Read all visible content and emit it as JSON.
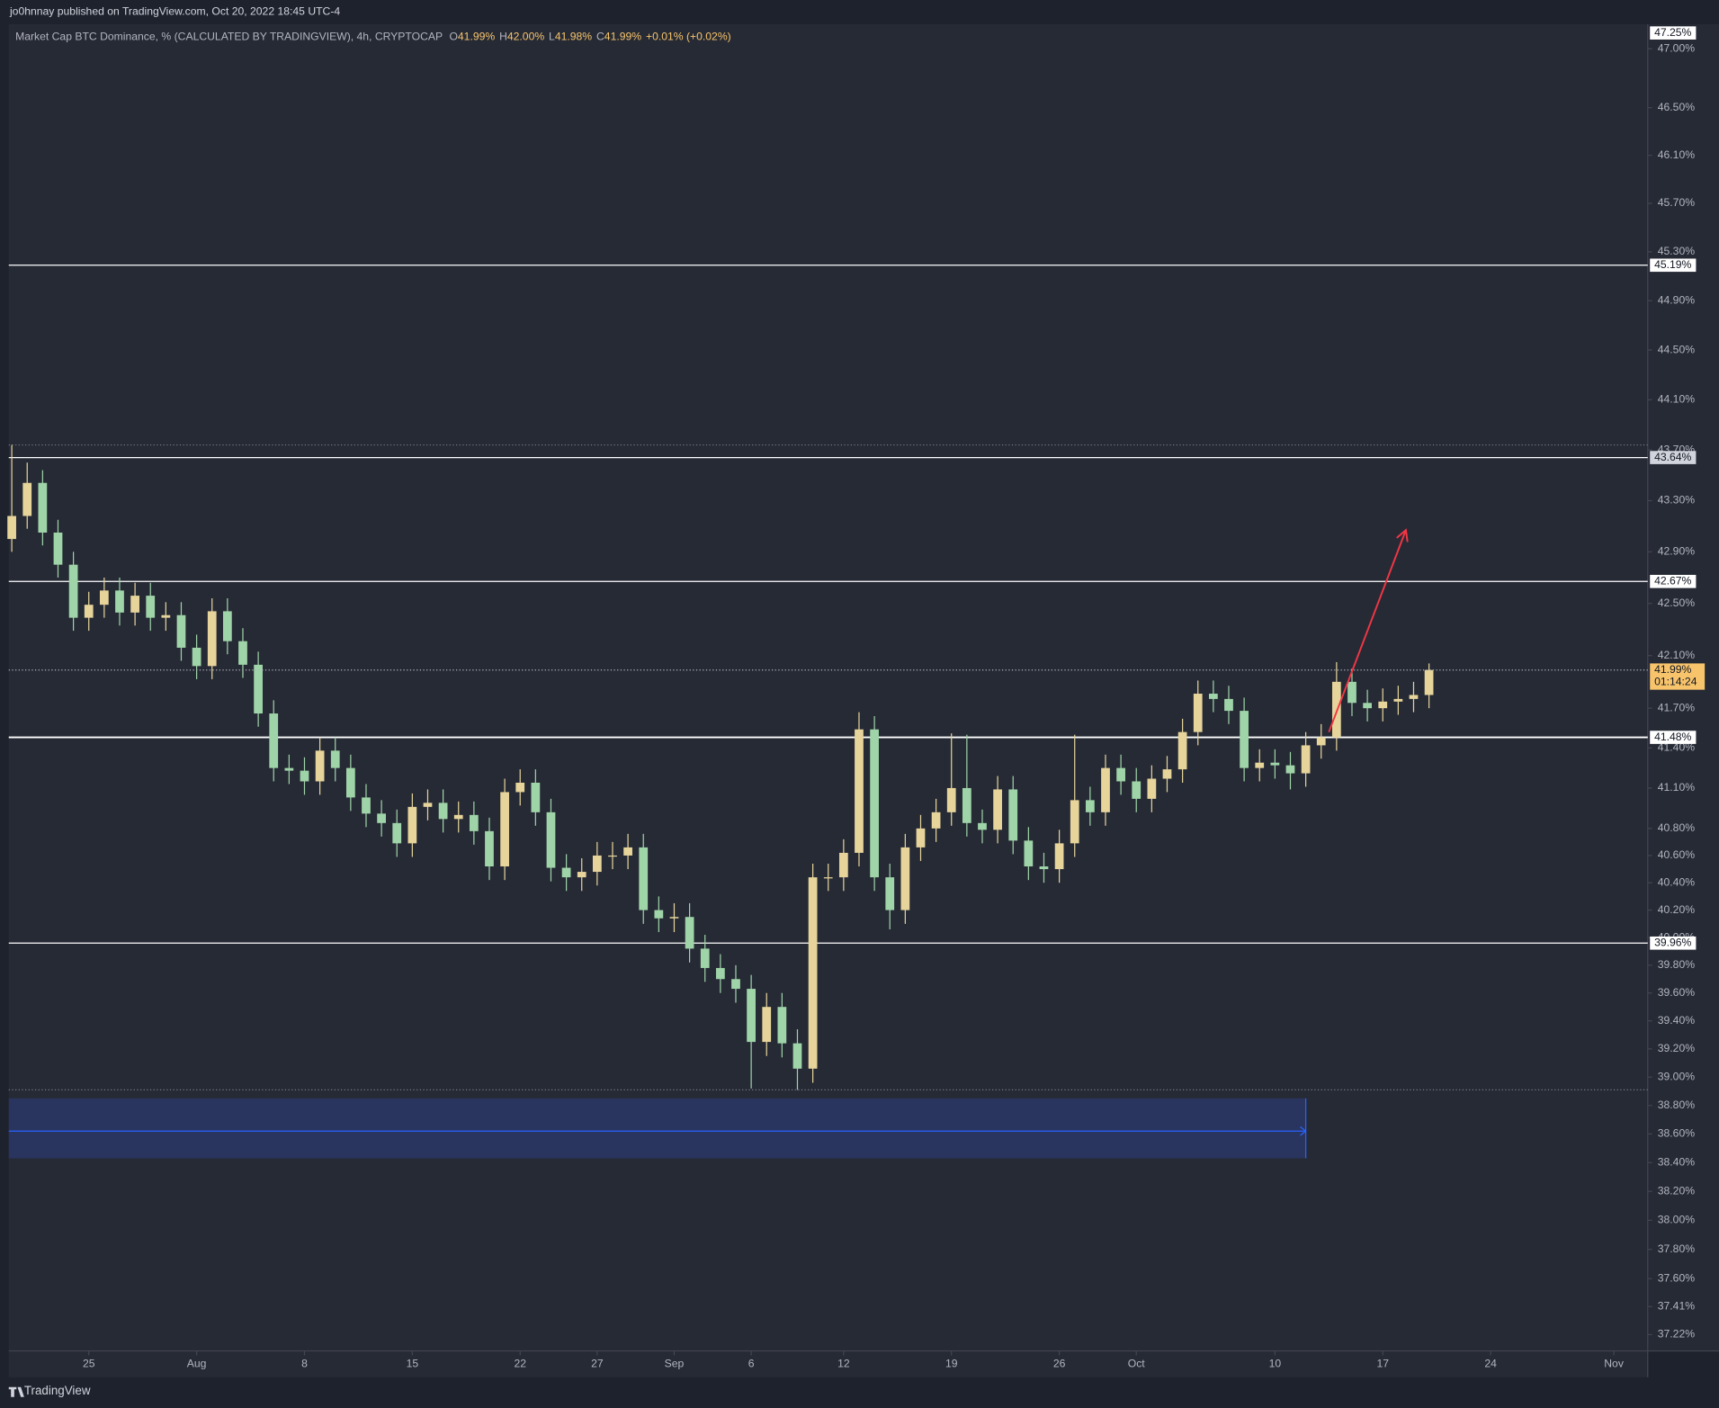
{
  "header": "jo0hnnay published on TradingView.com, Oct 20, 2022 18:45 UTC-4",
  "footer": "TradingView",
  "chart_data": {
    "type": "candlestick",
    "title": "Market Cap BTC Dominance, % (CALCULATED BY TRADINGVIEW), 4h, CRYPTOCAP",
    "ohlc_legend": [
      {
        "key": "O",
        "value": "41.99%"
      },
      {
        "key": "H",
        "value": "42.00%"
      },
      {
        "key": "L",
        "value": "41.98%"
      },
      {
        "key": "C",
        "value": "41.99%"
      }
    ],
    "change": "+0.01% (+0.02%)",
    "up_color": "#e6d49a",
    "down_color": "#9fd4a8",
    "log_scale": true,
    "grid": false,
    "xlim": [
      "2022-07-19T19:18:00Z",
      "2022-11-03T04:48:00Z"
    ],
    "ylim": [
      37.11,
      47.21
    ],
    "xticks": [
      {
        "value": "2022-07-25",
        "label": "25"
      },
      {
        "value": "2022-08-01",
        "label": "Aug"
      },
      {
        "value": "2022-08-08",
        "label": "8"
      },
      {
        "value": "2022-08-15",
        "label": "15"
      },
      {
        "value": "2022-08-22",
        "label": "22"
      },
      {
        "value": "2022-08-27",
        "label": "27"
      },
      {
        "value": "2022-09-01",
        "label": "Sep"
      },
      {
        "value": "2022-09-06",
        "label": "6"
      },
      {
        "value": "2022-09-12",
        "label": "12"
      },
      {
        "value": "2022-09-19",
        "label": "19"
      },
      {
        "value": "2022-09-26",
        "label": "26"
      },
      {
        "value": "2022-10-01",
        "label": "Oct"
      },
      {
        "value": "2022-10-10",
        "label": "10"
      },
      {
        "value": "2022-10-17",
        "label": "17"
      },
      {
        "value": "2022-10-24",
        "label": "24"
      },
      {
        "value": "2022-11-01",
        "label": "Nov"
      }
    ],
    "yticks": [
      {
        "value": 47,
        "label": "47.00%"
      },
      {
        "value": 46.5,
        "label": "46.50%"
      },
      {
        "value": 46.1,
        "label": "46.10%"
      },
      {
        "value": 45.7,
        "label": "45.70%"
      },
      {
        "value": 45.3,
        "label": "45.30%"
      },
      {
        "value": 44.9,
        "label": "44.90%"
      },
      {
        "value": 44.5,
        "label": "44.50%"
      },
      {
        "value": 44.1,
        "label": "44.10%"
      },
      {
        "value": 43.7,
        "label": "43.70%"
      },
      {
        "value": 43.3,
        "label": "43.30%"
      },
      {
        "value": 42.9,
        "label": "42.90%"
      },
      {
        "value": 42.5,
        "label": "42.50%"
      },
      {
        "value": 42.1,
        "label": "42.10%"
      },
      {
        "value": 41.7,
        "label": "41.70%"
      },
      {
        "value": 41.4,
        "label": "41.40%"
      },
      {
        "value": 41.1,
        "label": "41.10%"
      },
      {
        "value": 40.8,
        "label": "40.80%"
      },
      {
        "value": 40.6,
        "label": "40.60%"
      },
      {
        "value": 40.4,
        "label": "40.40%"
      },
      {
        "value": 40.2,
        "label": "40.20%"
      },
      {
        "value": 40,
        "label": "40.00%"
      },
      {
        "value": 39.8,
        "label": "39.80%"
      },
      {
        "value": 39.6,
        "label": "39.60%"
      },
      {
        "value": 39.4,
        "label": "39.40%"
      },
      {
        "value": 39.2,
        "label": "39.20%"
      },
      {
        "value": 39,
        "label": "39.00%"
      },
      {
        "value": 38.8,
        "label": "38.80%"
      },
      {
        "value": 38.6,
        "label": "38.60%"
      },
      {
        "value": 38.4,
        "label": "38.40%"
      },
      {
        "value": 38.2,
        "label": "38.20%"
      },
      {
        "value": 38,
        "label": "38.00%"
      },
      {
        "value": 37.8,
        "label": "37.80%"
      },
      {
        "value": 37.6,
        "label": "37.60%"
      },
      {
        "value": 37.41,
        "label": "37.41%"
      },
      {
        "value": 37.22,
        "label": "37.22%"
      }
    ],
    "top_marker": {
      "value": 47.25,
      "label": "47.25%"
    },
    "levels": [
      {
        "value": 45.19,
        "label": "45.19%"
      },
      {
        "value": 43.64,
        "label": "43.64%"
      },
      {
        "value": 42.67,
        "label": "42.67%"
      },
      {
        "value": 41.48,
        "label": "41.48%"
      },
      {
        "value": 39.96,
        "label": "39.96%"
      }
    ],
    "last_price": {
      "value": 41.99,
      "label": "41.99%",
      "countdown": "01:14:24"
    },
    "zone": {
      "top": 38.85,
      "bottom": 38.43,
      "mid": 38.62,
      "end": "2022-10-12",
      "color": "#2a3766",
      "line_color": "#2962ff"
    },
    "arrow": {
      "from": [
        "2022-10-13T12:00:00Z",
        41.52
      ],
      "to": [
        "2022-10-18T12:00:00Z",
        43.07
      ],
      "color": "#f23645"
    },
    "x": [
      "2022-07-20",
      "2022-07-21",
      "2022-07-22",
      "2022-07-23",
      "2022-07-24",
      "2022-07-25",
      "2022-07-26",
      "2022-07-27",
      "2022-07-28",
      "2022-07-29",
      "2022-07-30",
      "2022-07-31",
      "2022-08-01",
      "2022-08-02",
      "2022-08-03",
      "2022-08-04",
      "2022-08-05",
      "2022-08-06",
      "2022-08-07",
      "2022-08-08",
      "2022-08-09",
      "2022-08-10",
      "2022-08-11",
      "2022-08-12",
      "2022-08-13",
      "2022-08-14",
      "2022-08-15",
      "2022-08-16",
      "2022-08-17",
      "2022-08-18",
      "2022-08-19",
      "2022-08-20",
      "2022-08-21",
      "2022-08-22",
      "2022-08-23",
      "2022-08-24",
      "2022-08-25",
      "2022-08-26",
      "2022-08-27",
      "2022-08-28",
      "2022-08-29",
      "2022-08-30",
      "2022-08-31",
      "2022-09-01",
      "2022-09-02",
      "2022-09-03",
      "2022-09-04",
      "2022-09-05",
      "2022-09-06",
      "2022-09-07",
      "2022-09-08",
      "2022-09-09",
      "2022-09-10",
      "2022-09-11",
      "2022-09-12",
      "2022-09-13",
      "2022-09-14",
      "2022-09-15",
      "2022-09-16",
      "2022-09-17",
      "2022-09-18",
      "2022-09-19",
      "2022-09-20",
      "2022-09-21",
      "2022-09-22",
      "2022-09-23",
      "2022-09-24",
      "2022-09-25",
      "2022-09-26",
      "2022-09-27",
      "2022-09-28",
      "2022-09-29",
      "2022-09-30",
      "2022-10-01",
      "2022-10-02",
      "2022-10-03",
      "2022-10-04",
      "2022-10-05",
      "2022-10-06",
      "2022-10-07",
      "2022-10-08",
      "2022-10-09",
      "2022-10-10",
      "2022-10-11",
      "2022-10-12",
      "2022-10-13",
      "2022-10-14",
      "2022-10-15",
      "2022-10-16",
      "2022-10-17",
      "2022-10-18",
      "2022-10-19",
      "2022-10-20"
    ],
    "open": [
      43.0,
      43.18,
      43.44,
      43.05,
      42.8,
      42.39,
      42.49,
      42.6,
      42.43,
      42.56,
      42.39,
      42.41,
      42.16,
      42.02,
      42.44,
      42.21,
      42.03,
      41.66,
      41.25,
      41.23,
      41.15,
      41.38,
      41.25,
      41.03,
      40.91,
      40.84,
      40.69,
      40.96,
      40.99,
      40.87,
      40.9,
      40.78,
      40.52,
      41.07,
      41.14,
      40.92,
      40.51,
      40.44,
      40.48,
      40.6,
      40.6,
      40.66,
      40.2,
      40.14,
      40.15,
      39.92,
      39.78,
      39.7,
      39.63,
      39.25,
      39.5,
      39.24,
      39.06,
      40.44,
      40.44,
      40.62,
      41.54,
      40.44,
      40.2,
      40.66,
      40.8,
      40.92,
      41.1,
      40.84,
      40.79,
      41.09,
      40.71,
      40.52,
      40.5,
      40.69,
      41.01,
      40.92,
      41.25,
      41.15,
      41.02,
      41.17,
      41.24,
      41.52,
      41.81,
      41.77,
      41.68,
      41.25,
      41.29,
      41.27,
      41.21,
      41.42,
      41.48,
      41.9,
      41.74,
      41.7,
      41.75,
      41.77,
      41.8
    ],
    "high": [
      43.74,
      43.6,
      43.54,
      43.15,
      42.9,
      42.59,
      42.7,
      42.7,
      42.66,
      42.66,
      42.51,
      42.51,
      42.26,
      42.54,
      42.54,
      42.31,
      42.13,
      41.76,
      41.35,
      41.33,
      41.48,
      41.48,
      41.35,
      41.13,
      41.01,
      40.94,
      41.06,
      41.09,
      41.09,
      41.0,
      41.0,
      40.88,
      41.17,
      41.24,
      41.24,
      41.02,
      40.61,
      40.58,
      40.7,
      40.7,
      40.76,
      40.76,
      40.3,
      40.25,
      40.25,
      40.02,
      39.88,
      39.8,
      39.73,
      39.6,
      39.6,
      39.34,
      40.54,
      40.54,
      40.72,
      41.67,
      41.64,
      40.54,
      40.76,
      40.9,
      41.02,
      41.51,
      41.5,
      40.94,
      41.19,
      41.19,
      40.81,
      40.62,
      40.79,
      41.5,
      41.11,
      41.35,
      41.35,
      41.25,
      41.27,
      41.34,
      41.62,
      41.91,
      41.91,
      41.87,
      41.78,
      41.39,
      41.39,
      41.37,
      41.52,
      41.58,
      42.05,
      42.0,
      41.84,
      41.85,
      41.87,
      41.9,
      42.04
    ],
    "low": [
      42.9,
      43.08,
      42.95,
      42.7,
      42.29,
      42.29,
      42.39,
      42.33,
      42.33,
      42.29,
      42.29,
      42.06,
      41.92,
      41.92,
      42.11,
      41.93,
      41.56,
      41.15,
      41.13,
      41.05,
      41.05,
      41.15,
      40.93,
      40.81,
      40.74,
      40.59,
      40.59,
      40.86,
      40.77,
      40.77,
      40.68,
      40.42,
      40.42,
      40.97,
      40.82,
      40.41,
      40.34,
      40.34,
      40.38,
      40.5,
      40.5,
      40.1,
      40.04,
      40.04,
      39.82,
      39.68,
      39.6,
      39.53,
      38.92,
      39.15,
      39.14,
      38.91,
      38.96,
      40.34,
      40.34,
      40.52,
      40.34,
      40.06,
      40.1,
      40.56,
      40.7,
      40.82,
      40.74,
      40.69,
      40.69,
      40.61,
      40.42,
      40.4,
      40.4,
      40.59,
      40.82,
      40.82,
      41.05,
      40.92,
      40.92,
      41.07,
      41.14,
      41.42,
      41.67,
      41.58,
      41.15,
      41.15,
      41.17,
      41.09,
      41.11,
      41.32,
      41.38,
      41.64,
      41.6,
      41.6,
      41.65,
      41.67,
      41.7
    ],
    "close": [
      43.18,
      43.44,
      43.05,
      42.8,
      42.39,
      42.49,
      42.6,
      42.43,
      42.56,
      42.39,
      42.41,
      42.16,
      42.02,
      42.44,
      42.21,
      42.03,
      41.66,
      41.25,
      41.23,
      41.15,
      41.38,
      41.25,
      41.03,
      40.91,
      40.84,
      40.69,
      40.96,
      40.99,
      40.87,
      40.9,
      40.78,
      40.52,
      41.07,
      41.14,
      40.92,
      40.51,
      40.44,
      40.48,
      40.6,
      40.6,
      40.66,
      40.2,
      40.14,
      40.15,
      39.92,
      39.78,
      39.7,
      39.63,
      39.25,
      39.5,
      39.24,
      39.06,
      40.44,
      40.44,
      40.62,
      41.54,
      40.44,
      40.2,
      40.66,
      40.8,
      40.92,
      41.1,
      40.84,
      40.79,
      41.09,
      40.71,
      40.52,
      40.5,
      40.69,
      41.01,
      40.92,
      41.25,
      41.15,
      41.02,
      41.17,
      41.24,
      41.52,
      41.81,
      41.77,
      41.68,
      41.25,
      41.29,
      41.27,
      41.21,
      41.42,
      41.48,
      41.9,
      41.74,
      41.7,
      41.75,
      41.77,
      41.8,
      41.99
    ]
  }
}
